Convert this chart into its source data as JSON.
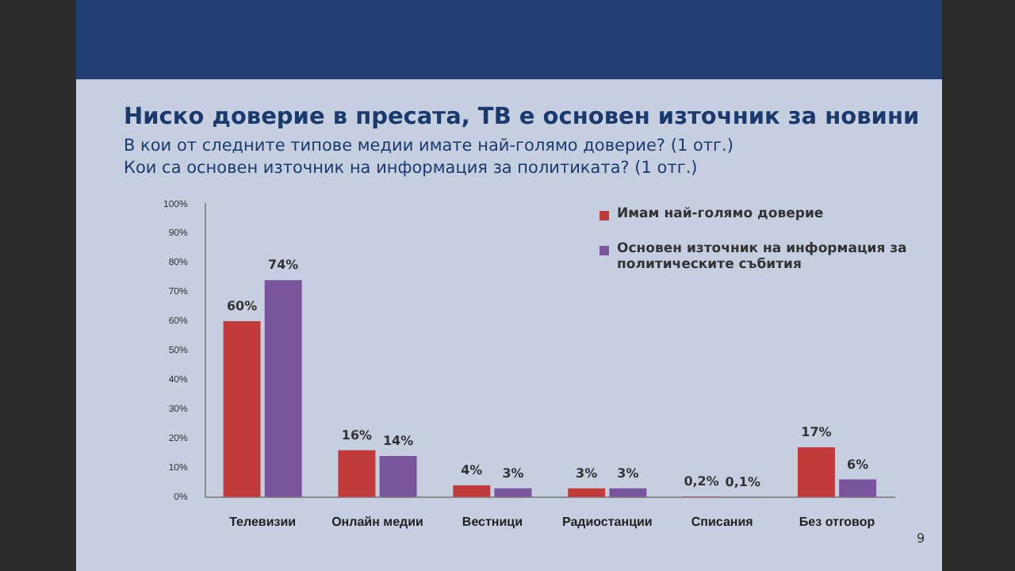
{
  "chart_data": {
    "type": "bar",
    "title": "Ниско доверие в пресата, ТВ е основен източник за новини",
    "subtitle": "В кои от следните типове медии имате най-голямо доверие? (1 отг.)\nКои са основен източник на информация за политиката? (1 отг.)",
    "categories": [
      "Телевизии",
      "Онлайн медии",
      "Вестници",
      "Радиостанции",
      "Списания",
      "Без отговор"
    ],
    "series": [
      {
        "name": "Имам най-голямо доверие",
        "color": "#c0393b",
        "values": [
          60,
          16,
          4,
          3,
          0.2,
          17
        ],
        "value_labels": [
          "60%",
          "16%",
          "4%",
          "3%",
          "0,2%",
          "17%"
        ]
      },
      {
        "name": "Основен източник на информация за политическите събития",
        "color": "#7a559e",
        "values": [
          74,
          14,
          3,
          3,
          0.1,
          6
        ],
        "value_labels": [
          "74%",
          "14%",
          "3%",
          "3%",
          "0,1%",
          "6%"
        ]
      }
    ],
    "ylim": [
      0,
      100
    ],
    "yticks": [
      {
        "value": 0,
        "label": "0%"
      },
      {
        "value": 10,
        "label": "10%"
      },
      {
        "value": 20,
        "label": "20%"
      },
      {
        "value": 30,
        "label": "30%"
      },
      {
        "value": 40,
        "label": "40%"
      },
      {
        "value": 50,
        "label": "50%"
      },
      {
        "value": 60,
        "label": "60%"
      },
      {
        "value": 70,
        "label": "70%"
      },
      {
        "value": 80,
        "label": "80%"
      },
      {
        "value": 90,
        "label": "90%"
      },
      {
        "value": 100,
        "label": "100%"
      }
    ],
    "grid": false,
    "legend": "top right",
    "annotations": [
      "9"
    ]
  }
}
